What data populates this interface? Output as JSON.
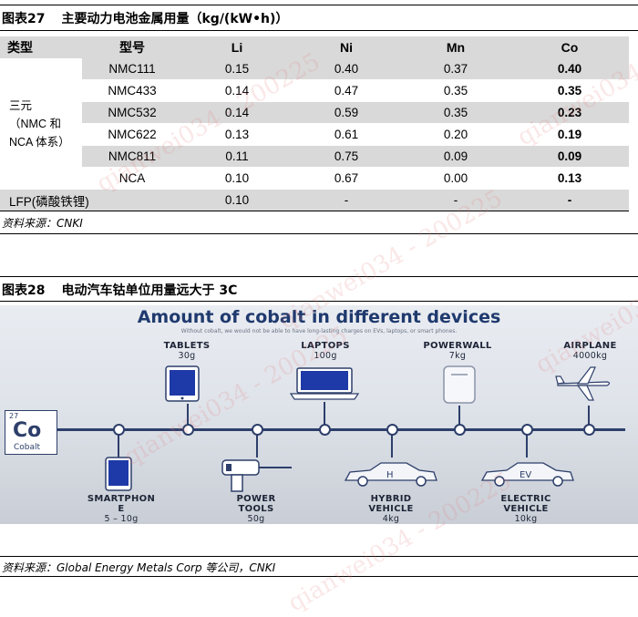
{
  "figure27": {
    "label": "图表27",
    "title": "主要动力电池金属用量（kg/(kW•h)）",
    "source": "资料来源：CNKI",
    "table": {
      "headers": [
        "类型",
        "型号",
        "Li",
        "Ni",
        "Mn",
        "Co"
      ],
      "group_label_lines": [
        "三元",
        "（NMC 和",
        "NCA 体系）"
      ],
      "rows": [
        {
          "model": "NMC111",
          "li": "0.15",
          "ni": "0.40",
          "mn": "0.37",
          "co": "0.40"
        },
        {
          "model": "NMC433",
          "li": "0.14",
          "ni": "0.47",
          "mn": "0.35",
          "co": "0.35"
        },
        {
          "model": "NMC532",
          "li": "0.14",
          "ni": "0.59",
          "mn": "0.35",
          "co": "0.23"
        },
        {
          "model": "NMC622",
          "li": "0.13",
          "ni": "0.61",
          "mn": "0.20",
          "co": "0.19"
        },
        {
          "model": "NMC811",
          "li": "0.11",
          "ni": "0.75",
          "mn": "0.09",
          "co": "0.09"
        },
        {
          "model": "NCA",
          "li": "0.10",
          "ni": "0.67",
          "mn": "0.00",
          "co": "0.13"
        }
      ],
      "lfp_row": {
        "label": "LFP(磷酸铁锂)",
        "li": "0.10",
        "ni": "-",
        "mn": "-",
        "co": "-"
      }
    }
  },
  "figure28": {
    "label": "图表28",
    "title": "电动汽车钴单位用量远大于 3C",
    "source": "资料来源：Global Energy Metals Corp 等公司，CNKI",
    "infographic": {
      "headline": "Amount of cobalt in different devices",
      "subtitle": "Without cobalt, we would not be able to have long-lasting charges on EVs, laptops, or smart phones.",
      "element": {
        "number": "27",
        "symbol": "Co",
        "name": "Cobalt"
      },
      "colors": {
        "navy": "#2d3f6a",
        "headline": "#1f3a6e"
      },
      "top_devices": [
        {
          "name": "TABLETS",
          "mass": "30g",
          "icon": "tablet-icon"
        },
        {
          "name": "LAPTOPS",
          "mass": "100g",
          "icon": "laptop-icon"
        },
        {
          "name": "POWERWALL",
          "mass": "7kg",
          "icon": "powerwall-icon"
        },
        {
          "name": "AIRPLANE",
          "mass": "4000kg",
          "icon": "airplane-icon"
        }
      ],
      "bottom_devices": [
        {
          "name_lines": [
            "SMARTPHON",
            "E"
          ],
          "mass": "5 – 10g",
          "icon": "smartphone-icon"
        },
        {
          "name_lines": [
            "POWER",
            "TOOLS"
          ],
          "mass": "50g",
          "icon": "power-drill-icon"
        },
        {
          "name_lines": [
            "HYBRID",
            "VEHICLE"
          ],
          "mass": "4kg",
          "icon": "hybrid-car-icon",
          "badge": "H"
        },
        {
          "name_lines": [
            "ELECTRIC",
            "VEHICLE"
          ],
          "mass": "10kg",
          "icon": "electric-car-icon",
          "badge": "EV"
        }
      ]
    }
  },
  "watermarks": [
    "qianwei034 - 200225",
    "qianwei034 - 200225",
    "qianwei034",
    "qianwei034 - 200225",
    "qianwei034",
    "qianwei034 - 200225"
  ]
}
